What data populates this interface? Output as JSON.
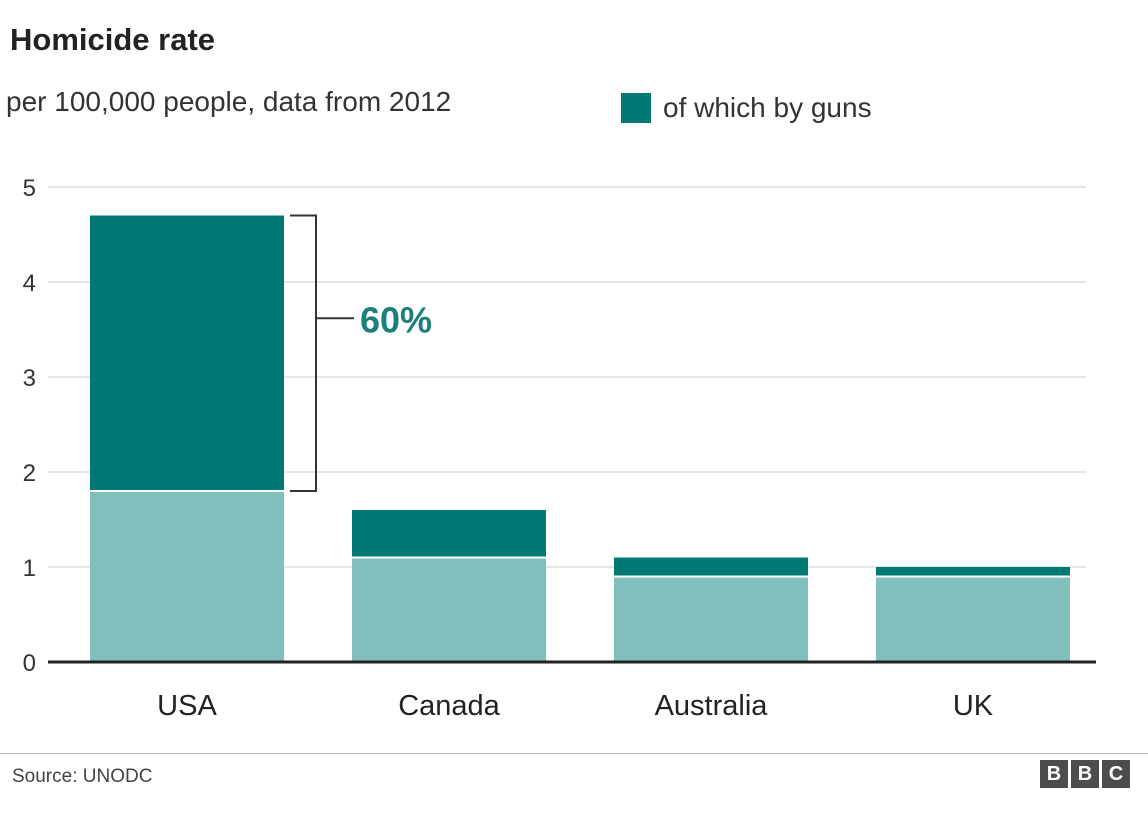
{
  "header": {
    "title": "Homicide rate",
    "subtitle": "per 100,000 people, data from 2012"
  },
  "legend": {
    "label": "of which by guns",
    "color": "#007873"
  },
  "colors": {
    "guns": "#007873",
    "other": "#80bfbc",
    "grid": "#dddddd",
    "axis": "#222222",
    "annotation": "#1a8079"
  },
  "chart_data": {
    "type": "bar",
    "stacked": true,
    "categories": [
      "USA",
      "Canada",
      "Australia",
      "UK"
    ],
    "totals": [
      4.7,
      1.6,
      1.1,
      1.0
    ],
    "series": [
      {
        "values": [
          1.8,
          1.1,
          0.9,
          0.9
        ]
      },
      {
        "name": "of which by guns",
        "values": [
          2.9,
          0.5,
          0.2,
          0.1
        ]
      }
    ],
    "ylim": [
      0,
      5
    ],
    "yticks": [
      0,
      1,
      2,
      3,
      4,
      5
    ],
    "grid": true,
    "annotation": {
      "label": "60%",
      "category": "USA"
    }
  },
  "footer": {
    "source": "Source: UNODC",
    "logo_letters": [
      "B",
      "B",
      "C"
    ]
  }
}
